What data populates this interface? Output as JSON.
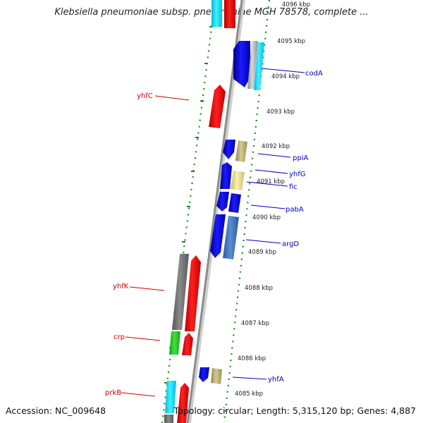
{
  "title": "Klebsiella pneumoniae subsp. pneumoniae MGH 78578, complete ...",
  "footer": {
    "accession": "Accession: NC_009648",
    "summary": "Topology: circular; Length: 5,315,120 bp; Genes: 4,887"
  },
  "colors": {
    "backbone": "#8c8c8c",
    "ticks": "#1a8a1a",
    "label_red": "#cc0000",
    "label_blue": "#0000bb"
  },
  "ticks": [
    {
      "label": "4096 kbp"
    },
    {
      "label": "4095 kbp"
    },
    {
      "label": "4094 kbp"
    },
    {
      "label": "4093 kbp"
    },
    {
      "label": "4092 kbp"
    },
    {
      "label": "4091 kbp"
    },
    {
      "label": "4090 kbp"
    },
    {
      "label": "4089 kbp"
    },
    {
      "label": "4088 kbp"
    },
    {
      "label": "4087 kbp"
    },
    {
      "label": "4086 kbp"
    },
    {
      "label": "4085 kbp"
    }
  ],
  "gene_labels": [
    {
      "name": "codA"
    },
    {
      "name": "yhfC"
    },
    {
      "name": "ppiA"
    },
    {
      "name": "yhfG"
    },
    {
      "name": "fic"
    },
    {
      "name": "pabA"
    },
    {
      "name": "argD"
    },
    {
      "name": "yhfK"
    },
    {
      "name": "crp"
    },
    {
      "name": "yhfA"
    },
    {
      "name": "prkB"
    }
  ]
}
